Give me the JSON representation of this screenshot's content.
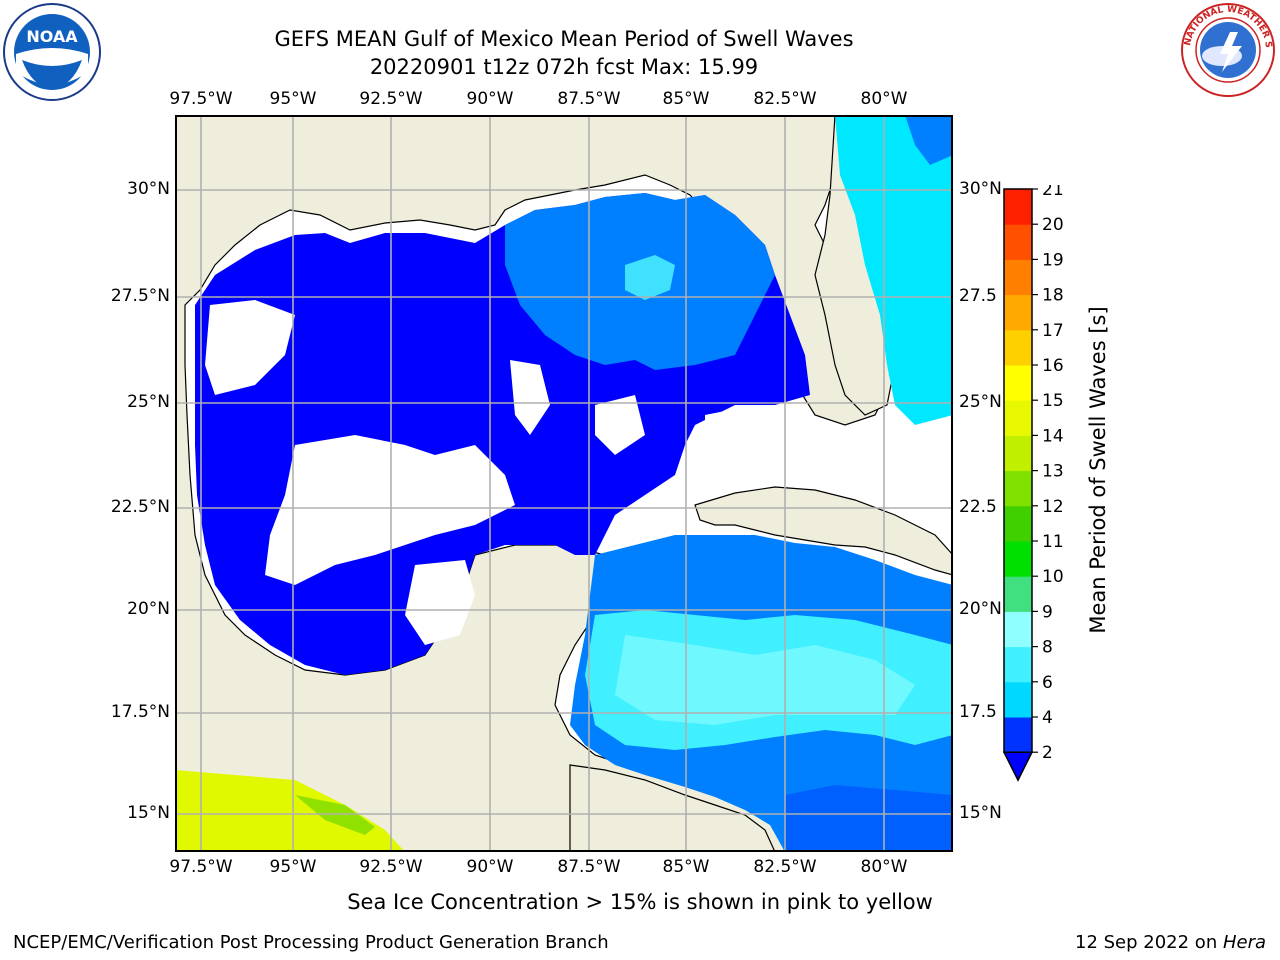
{
  "header": {
    "title_line1": "GEFS MEAN Gulf of Mexico Mean Period of Swell Waves",
    "title_line2": "20220901 t12z 072h fcst   Max: 15.99"
  },
  "logos": {
    "left": {
      "icon": "noaa-logo-icon",
      "text": "NOAA"
    },
    "right": {
      "icon": "nws-logo-icon",
      "text": "NATIONAL WEATHER SERVICE"
    }
  },
  "map": {
    "lon_labels": [
      "97.5°W",
      "95°W",
      "92.5°W",
      "90°W",
      "87.5°W",
      "85°W",
      "82.5°W",
      "80°W"
    ],
    "lat_labels_left": [
      "30°N",
      "27.5°N",
      "25°N",
      "22.5°N",
      "20°N",
      "17.5°N",
      "15°N"
    ],
    "lat_labels_right": [
      "30°N",
      "27.5",
      "25°N",
      "22.5",
      "20°N",
      "17.5",
      "15°N"
    ],
    "land_color": "#efeedc",
    "grid_color": "#b0b0b0"
  },
  "colorbar": {
    "label": "Mean Period of Swell Waves [s]",
    "ticks": [
      "2",
      "4",
      "6",
      "8",
      "9",
      "10",
      "11",
      "12",
      "13",
      "14",
      "15",
      "16",
      "17",
      "18",
      "19",
      "20",
      "21"
    ],
    "colors": [
      "#0033ff",
      "#00d8ff",
      "#40f0ff",
      "#90ffff",
      "#40e080",
      "#00e000",
      "#40d000",
      "#80e000",
      "#c0f000",
      "#e8f800",
      "#ffff00",
      "#ffd000",
      "#ffa800",
      "#ff8000",
      "#ff5000",
      "#ff2000"
    ],
    "under_color": "#0000ff"
  },
  "footnote": "Sea Ice Concentration > 15% is shown in pink to yellow",
  "footer": {
    "left": "NCEP/EMC/Verification Post Processing Product Generation Branch",
    "right_date": "12 Sep 2022 on ",
    "right_host": "Hera"
  }
}
